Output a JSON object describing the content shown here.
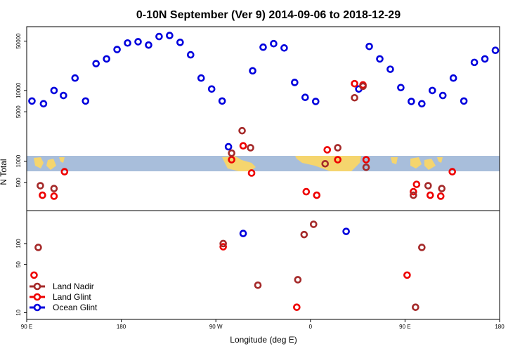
{
  "chart_data": {
    "type": "scatter",
    "title": "0-10N September (Ver 9)   2014-09-06 to 2018-12-29",
    "xlabel": "Longitude (deg E)",
    "ylabel": "N Total",
    "x_ticks": [
      {
        "value": 90,
        "label": "90 E"
      },
      {
        "value": 180,
        "label": "180"
      },
      {
        "value": 270,
        "label": "90 W"
      },
      {
        "value": 360,
        "label": "0"
      },
      {
        "value": 450,
        "label": "90 E"
      },
      {
        "value": 540,
        "label": "180"
      }
    ],
    "xlim": [
      90,
      540
    ],
    "upper_panel": {
      "scale": "log",
      "ylim": [
        200,
        80000
      ],
      "y_ticks": [
        {
          "value": 500,
          "label": "500"
        },
        {
          "value": 1000,
          "label": "1000"
        },
        {
          "value": 5000,
          "label": "5000"
        },
        {
          "value": 10000,
          "label": "10000"
        },
        {
          "value": 50000,
          "label": "50000"
        }
      ],
      "map_band_range": [
        800,
        1300
      ],
      "series": [
        {
          "name": "Ocean Glint",
          "color": "#0000dd",
          "points": [
            [
              95,
              7100
            ],
            [
              106,
              6500
            ],
            [
              116,
              10000
            ],
            [
              125,
              8500
            ],
            [
              136,
              15000
            ],
            [
              146,
              7100
            ],
            [
              156,
              24000
            ],
            [
              166,
              28000
            ],
            [
              176,
              38000
            ],
            [
              186,
              47000
            ],
            [
              196,
              49000
            ],
            [
              206,
              44000
            ],
            [
              216,
              58000
            ],
            [
              226,
              60000
            ],
            [
              236,
              48000
            ],
            [
              246,
              32000
            ],
            [
              256,
              15000
            ],
            [
              266,
              10500
            ],
            [
              276,
              7100
            ],
            [
              282,
              1600
            ],
            [
              305,
              19000
            ],
            [
              315,
              41000
            ],
            [
              325,
              46000
            ],
            [
              335,
              40000
            ],
            [
              345,
              13000
            ],
            [
              355,
              8000
            ],
            [
              365,
              7000
            ],
            [
              406,
              10500
            ],
            [
              416,
              42000
            ],
            [
              426,
              28000
            ],
            [
              436,
              20000
            ],
            [
              446,
              11000
            ],
            [
              456,
              7000
            ],
            [
              466,
              6500
            ],
            [
              476,
              10000
            ],
            [
              486,
              8500
            ],
            [
              496,
              15000
            ],
            [
              506,
              7100
            ],
            [
              516,
              25000
            ],
            [
              526,
              28000
            ],
            [
              536,
              37000
            ]
          ]
        },
        {
          "name": "Land Glint",
          "color": "#ee0000",
          "points": [
            [
              105,
              330
            ],
            [
              116,
              320
            ],
            [
              126,
              710
            ],
            [
              285,
              1050
            ],
            [
              296,
              1650
            ],
            [
              304,
              680
            ],
            [
              356,
              370
            ],
            [
              366,
              330
            ],
            [
              376,
              1450
            ],
            [
              386,
              1050
            ],
            [
              402,
              12500
            ],
            [
              410,
              12000
            ],
            [
              413,
              1050
            ],
            [
              458,
              370
            ],
            [
              461,
              470
            ],
            [
              474,
              330
            ],
            [
              484,
              320
            ],
            [
              495,
              710
            ]
          ]
        },
        {
          "name": "Land Nadir",
          "color": "#a52a2a",
          "points": [
            [
              103,
              450
            ],
            [
              116,
              410
            ],
            [
              285,
              1300
            ],
            [
              295,
              2700
            ],
            [
              303,
              1550
            ],
            [
              374,
              920
            ],
            [
              386,
              1550
            ],
            [
              402,
              7900
            ],
            [
              410,
              11500
            ],
            [
              413,
              820
            ],
            [
              458,
              330
            ],
            [
              472,
              450
            ],
            [
              485,
              410
            ]
          ]
        }
      ]
    },
    "lower_panel": {
      "scale": "log",
      "ylim": [
        8,
        300
      ],
      "y_ticks": [
        {
          "value": 10,
          "label": "10"
        },
        {
          "value": 50,
          "label": "50"
        },
        {
          "value": 100,
          "label": "100"
        }
      ],
      "series": [
        {
          "name": "Land Glint",
          "color": "#ee0000",
          "points": [
            [
              97,
              35
            ],
            [
              277,
              90
            ],
            [
              347,
              12
            ],
            [
              452,
              35
            ]
          ]
        },
        {
          "name": "Land Nadir",
          "color": "#a52a2a",
          "points": [
            [
              101,
              88
            ],
            [
              277,
              100
            ],
            [
              310,
              25
            ],
            [
              348,
              30
            ],
            [
              354,
              135
            ],
            [
              363,
              190
            ],
            [
              460,
              12
            ],
            [
              466,
              88
            ]
          ]
        },
        {
          "name": "Ocean Glint",
          "color": "#0000dd",
          "points": [
            [
              296,
              140
            ],
            [
              394,
              150
            ]
          ]
        }
      ]
    },
    "legend": {
      "position": "bottom-left",
      "entries": [
        {
          "label": "Land Nadir",
          "color": "#a52a2a"
        },
        {
          "label": "Land Glint",
          "color": "#ee0000"
        },
        {
          "label": "Ocean Glint",
          "color": "#0000dd"
        }
      ]
    }
  }
}
